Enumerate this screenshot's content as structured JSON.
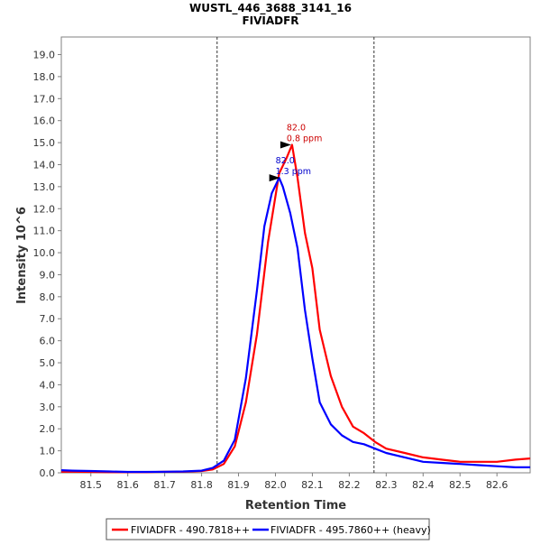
{
  "chart_data": {
    "type": "line",
    "title": "WUSTL_446_3688_3141_16",
    "subtitle": "FIVIADFR",
    "xlabel": "Retention Time",
    "ylabel": "Intensity 10^6",
    "xlim": [
      81.42,
      82.69
    ],
    "ylim": [
      0,
      19.8
    ],
    "xticks": [
      "81.5",
      "81.6",
      "81.7",
      "81.8",
      "81.9",
      "82.0",
      "82.1",
      "82.2",
      "82.3",
      "82.4",
      "82.5",
      "82.6"
    ],
    "yticks": [
      "0.0",
      "1.0",
      "2.0",
      "3.0",
      "4.0",
      "5.0",
      "6.0",
      "7.0",
      "8.0",
      "9.0",
      "10.0",
      "11.0",
      "12.0",
      "13.0",
      "14.0",
      "15.0",
      "16.0",
      "17.0",
      "18.0",
      "19.0"
    ],
    "grid": false,
    "legend_position": "bottom",
    "boundaries": [
      81.842,
      82.267
    ],
    "series": [
      {
        "name": "FIVIADFR - 490.7818++",
        "color": "#ff0000",
        "x": [
          81.42,
          81.45,
          81.5,
          81.55,
          81.6,
          81.65,
          81.7,
          81.75,
          81.8,
          81.83,
          81.86,
          81.89,
          81.92,
          81.95,
          81.98,
          82.01,
          82.03,
          82.045,
          82.06,
          82.08,
          82.1,
          82.12,
          82.15,
          82.18,
          82.21,
          82.24,
          82.27,
          82.3,
          82.35,
          82.4,
          82.45,
          82.5,
          82.55,
          82.6,
          82.65,
          82.69
        ],
        "y": [
          0.05,
          0.05,
          0.04,
          0.03,
          0.03,
          0.03,
          0.05,
          0.05,
          0.08,
          0.15,
          0.4,
          1.2,
          3.2,
          6.3,
          10.5,
          13.6,
          14.3,
          14.9,
          13.4,
          10.9,
          9.3,
          6.5,
          4.4,
          3.0,
          2.1,
          1.8,
          1.4,
          1.1,
          0.9,
          0.7,
          0.6,
          0.5,
          0.5,
          0.5,
          0.6,
          0.65
        ]
      },
      {
        "name": "FIVIADFR - 495.7860++ (heavy)",
        "color": "#0000ff",
        "x": [
          81.42,
          81.45,
          81.5,
          81.55,
          81.6,
          81.65,
          81.7,
          81.75,
          81.8,
          81.83,
          81.86,
          81.89,
          81.92,
          81.95,
          81.97,
          81.99,
          82.01,
          82.02,
          82.04,
          82.06,
          82.08,
          82.1,
          82.12,
          82.15,
          82.18,
          82.21,
          82.24,
          82.27,
          82.3,
          82.35,
          82.4,
          82.45,
          82.5,
          82.55,
          82.6,
          82.65,
          82.69
        ],
        "y": [
          0.12,
          0.1,
          0.08,
          0.06,
          0.04,
          0.04,
          0.05,
          0.06,
          0.1,
          0.22,
          0.55,
          1.5,
          4.3,
          8.3,
          11.2,
          12.7,
          13.4,
          13.0,
          11.8,
          10.2,
          7.4,
          5.2,
          3.2,
          2.2,
          1.7,
          1.4,
          1.3,
          1.1,
          0.9,
          0.7,
          0.5,
          0.45,
          0.4,
          0.35,
          0.3,
          0.25,
          0.25
        ]
      }
    ],
    "annotations": [
      {
        "x": 82.045,
        "y": 14.9,
        "lines": [
          "82.0",
          "0.8 ppm"
        ],
        "color": "#cc0000"
      },
      {
        "x": 82.015,
        "y": 13.4,
        "lines": [
          "82.0",
          "1.3 ppm"
        ],
        "color": "#0000cc"
      }
    ]
  }
}
